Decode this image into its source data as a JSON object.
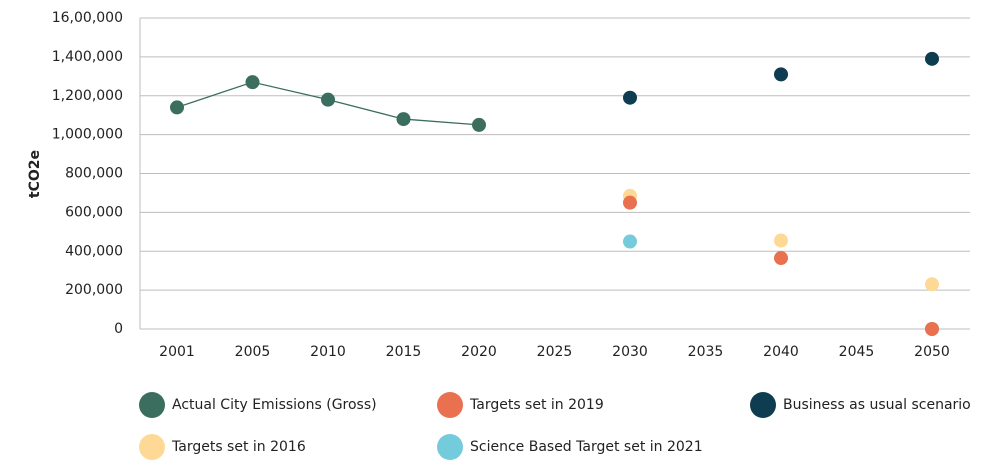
{
  "chart_data": {
    "type": "line",
    "y_label": "tCO2e",
    "categories": [
      "2001",
      "2005",
      "2010",
      "2015",
      "2020",
      "2025",
      "2030",
      "2035",
      "2040",
      "2045",
      "2050"
    ],
    "series": [
      {
        "name": "Actual City Emissions (Gross)",
        "color": "#3b6e5f",
        "values": [
          1140000,
          1270000,
          1180000,
          1080000,
          1050000,
          null,
          null,
          null,
          null,
          null,
          null
        ]
      },
      {
        "name": "Targets set in 2019",
        "color": "#ea7150",
        "values": [
          null,
          null,
          null,
          null,
          1025000,
          null,
          650000,
          null,
          365000,
          null,
          0
        ]
      },
      {
        "name": "Business as usual scenario",
        "color": "#0e3d51",
        "values": [
          null,
          null,
          null,
          null,
          1050000,
          null,
          1190000,
          null,
          1310000,
          null,
          1390000
        ]
      },
      {
        "name": "Targets set in 2016",
        "color": "#fdd995",
        "values": [
          null,
          null,
          null,
          null,
          1050000,
          null,
          685000,
          null,
          455000,
          null,
          230000
        ]
      },
      {
        "name": "Science Based Target set in 2021",
        "color": "#74cbdb",
        "values": [
          null,
          null,
          null,
          null,
          1050000,
          null,
          450000,
          null,
          null,
          null,
          0
        ]
      }
    ],
    "ylim": [
      0,
      1600000
    ],
    "yticks": [
      0,
      {
        "value": 200000,
        "label": "200,000"
      },
      {
        "value": 400000,
        "label": "400,000"
      },
      {
        "value": 600000,
        "label": "600,000"
      },
      {
        "value": 800000,
        "label": "800,000"
      },
      {
        "value": 1000000,
        "label": "1,000,000"
      },
      {
        "value": 1200000,
        "label": "1,200,000"
      },
      {
        "value": 1400000,
        "label": "1,400,000"
      },
      {
        "value": 1600000,
        "label": "16,00,000"
      }
    ],
    "grid": true
  }
}
